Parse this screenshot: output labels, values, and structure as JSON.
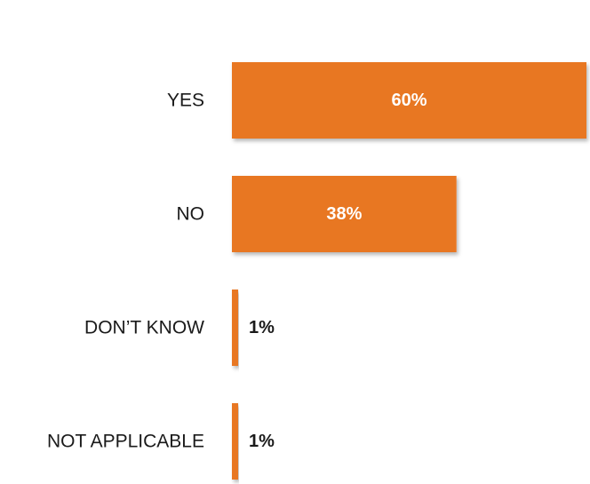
{
  "chart_data": {
    "type": "bar",
    "orientation": "horizontal",
    "categories": [
      "YES",
      "NO",
      "DON’T KNOW",
      "NOT APPLICABLE"
    ],
    "values": [
      60,
      38,
      1,
      1
    ],
    "value_labels": [
      "60%",
      "38%",
      "1%",
      "1%"
    ],
    "xlim": [
      0,
      60
    ],
    "grid": false,
    "legend": "none",
    "title": "",
    "xlabel": "",
    "ylabel": ""
  },
  "colors": {
    "bar": "#E87722",
    "bar_shadow": "#c8c8c8",
    "label_inside": "#ffffff",
    "label_outside": "#1a1a1a"
  }
}
